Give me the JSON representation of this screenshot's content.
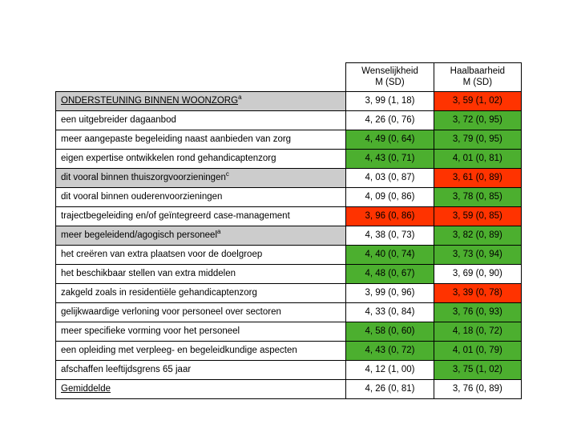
{
  "table": {
    "type": "table",
    "columns": [
      "",
      "Wenselijkheid M (SD)",
      "Haalbaarheid M (SD)"
    ],
    "header_col1_line1": "Wenselijkheid",
    "header_col1_line2": "M (SD)",
    "header_col2_line1": "Haalbaarheid",
    "header_col2_line2": "M (SD)",
    "colors": {
      "green": "#4caf2f",
      "red": "#ff3300",
      "shade": "#cccccc",
      "border": "#000000",
      "background": "#ffffff"
    },
    "rows": [
      {
        "label": "ONDERSTEUNING BINNEN WOONZORG",
        "sup": "a",
        "v1": "3, 99 (1, 18)",
        "v2": "3, 59 (1, 02)",
        "shade": true,
        "ul": true,
        "c1": null,
        "c2": "red"
      },
      {
        "label": "een uitgebreider dagaanbod",
        "sup": null,
        "v1": "4, 26 (0, 76)",
        "v2": "3, 72  (0, 95)",
        "shade": false,
        "ul": false,
        "c1": null,
        "c2": "green"
      },
      {
        "label": "meer aangepaste begeleiding naast aanbieden van zorg",
        "sup": null,
        "v1": "4, 49 (0, 64)",
        "v2": "3, 79 (0, 95)",
        "shade": false,
        "ul": false,
        "c1": "green",
        "c2": "green"
      },
      {
        "label": "eigen expertise ontwikkelen rond gehandicaptenzorg",
        "sup": null,
        "v1": "4, 43 (0, 71)",
        "v2": "4, 01 (0, 81)",
        "shade": false,
        "ul": false,
        "c1": "green",
        "c2": "green"
      },
      {
        "label": "dit vooral binnen thuiszorgvoorzieningen",
        "sup": "c",
        "v1": "4, 03 (0, 87)",
        "v2": "3, 61 (0, 89)",
        "shade": true,
        "ul": false,
        "c1": null,
        "c2": "red"
      },
      {
        "label": "dit vooral binnen ouderenvoorzieningen",
        "sup": null,
        "v1": "4, 09 (0, 86)",
        "v2": "3, 78 (0, 85)",
        "shade": false,
        "ul": false,
        "c1": null,
        "c2": "green"
      },
      {
        "label": "trajectbegeleiding en/of geïntegreerd case-management",
        "sup": null,
        "v1": "3, 96 (0, 86)",
        "v2": "3, 59 (0, 85)",
        "shade": false,
        "ul": false,
        "c1": "red",
        "c2": "red"
      },
      {
        "label": "meer begeleidend/agogisch personeel",
        "sup": "a",
        "v1": "4, 38 (0, 73)",
        "v2": "3, 82 (0, 89)",
        "shade": true,
        "ul": false,
        "c1": null,
        "c2": "green"
      },
      {
        "label": "het creëren van extra plaatsen voor de doelgroep",
        "sup": null,
        "v1": "4, 40 (0, 74)",
        "v2": "3, 73 (0, 94)",
        "shade": false,
        "ul": false,
        "c1": "green",
        "c2": "green"
      },
      {
        "label": "het beschikbaar stellen van extra middelen",
        "sup": null,
        "v1": "4, 48 (0, 67)",
        "v2": "3, 69 (0, 90)",
        "shade": false,
        "ul": false,
        "c1": "green",
        "c2": null
      },
      {
        "label": "zakgeld zoals in residentiële gehandicaptenzorg",
        "sup": null,
        "v1": "3, 99 (0, 96)",
        "v2": "3, 39 (0, 78)",
        "shade": false,
        "ul": false,
        "c1": null,
        "c2": "red"
      },
      {
        "label": "gelijkwaardige verloning voor personeel over sectoren",
        "sup": null,
        "v1": "4, 33 (0, 84)",
        "v2": "3, 76 (0, 93)",
        "shade": false,
        "ul": false,
        "c1": null,
        "c2": "green"
      },
      {
        "label": "meer specifieke vorming voor het personeel",
        "sup": null,
        "v1": "4, 58 (0, 60)",
        "v2": "4, 18 (0, 72)",
        "shade": false,
        "ul": false,
        "c1": "green",
        "c2": "green"
      },
      {
        "label": "een opleiding met verpleeg- en begeleidkundige aspecten",
        "sup": null,
        "v1": "4, 43 (0, 72)",
        "v2": "4, 01 (0, 79)",
        "shade": false,
        "ul": false,
        "c1": "green",
        "c2": "green"
      },
      {
        "label": "afschaffen leeftijdsgrens 65 jaar",
        "sup": null,
        "v1": "4, 12 (1, 00)",
        "v2": "3, 75 (1, 02)",
        "shade": false,
        "ul": false,
        "c1": null,
        "c2": "green"
      },
      {
        "label": "Gemiddelde",
        "sup": null,
        "v1": "4, 26 (0, 81)",
        "v2": "3, 76 (0, 89)",
        "shade": false,
        "ul": true,
        "c1": null,
        "c2": null
      }
    ]
  }
}
